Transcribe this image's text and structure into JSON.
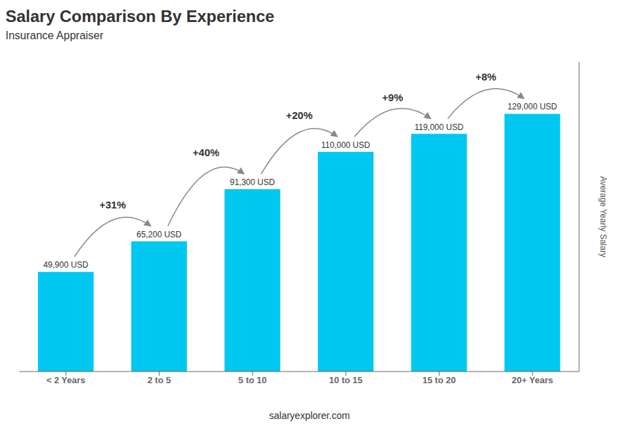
{
  "chart_data": {
    "type": "bar",
    "title": "Salary Comparison By Experience",
    "subtitle": "Insurance Appraiser",
    "categories": [
      "< 2 Years",
      "2 to 5",
      "5 to 10",
      "10 to 15",
      "15 to 20",
      "20+ Years"
    ],
    "values": [
      49900,
      65200,
      91300,
      110000,
      119000,
      129000
    ],
    "value_labels": [
      "49,900 USD",
      "65,200 USD",
      "91,300 USD",
      "110,000 USD",
      "119,000 USD",
      "129,000 USD"
    ],
    "data_labels": true,
    "annotations": [
      "+31%",
      "+40%",
      "+20%",
      "+9%",
      "+8%"
    ],
    "color": "#00C8F0",
    "ylim": [
      0,
      155000
    ],
    "tick_labels": "x",
    "ylabel": "Average Yearly Salary",
    "footer": "salaryexplorer.com"
  }
}
